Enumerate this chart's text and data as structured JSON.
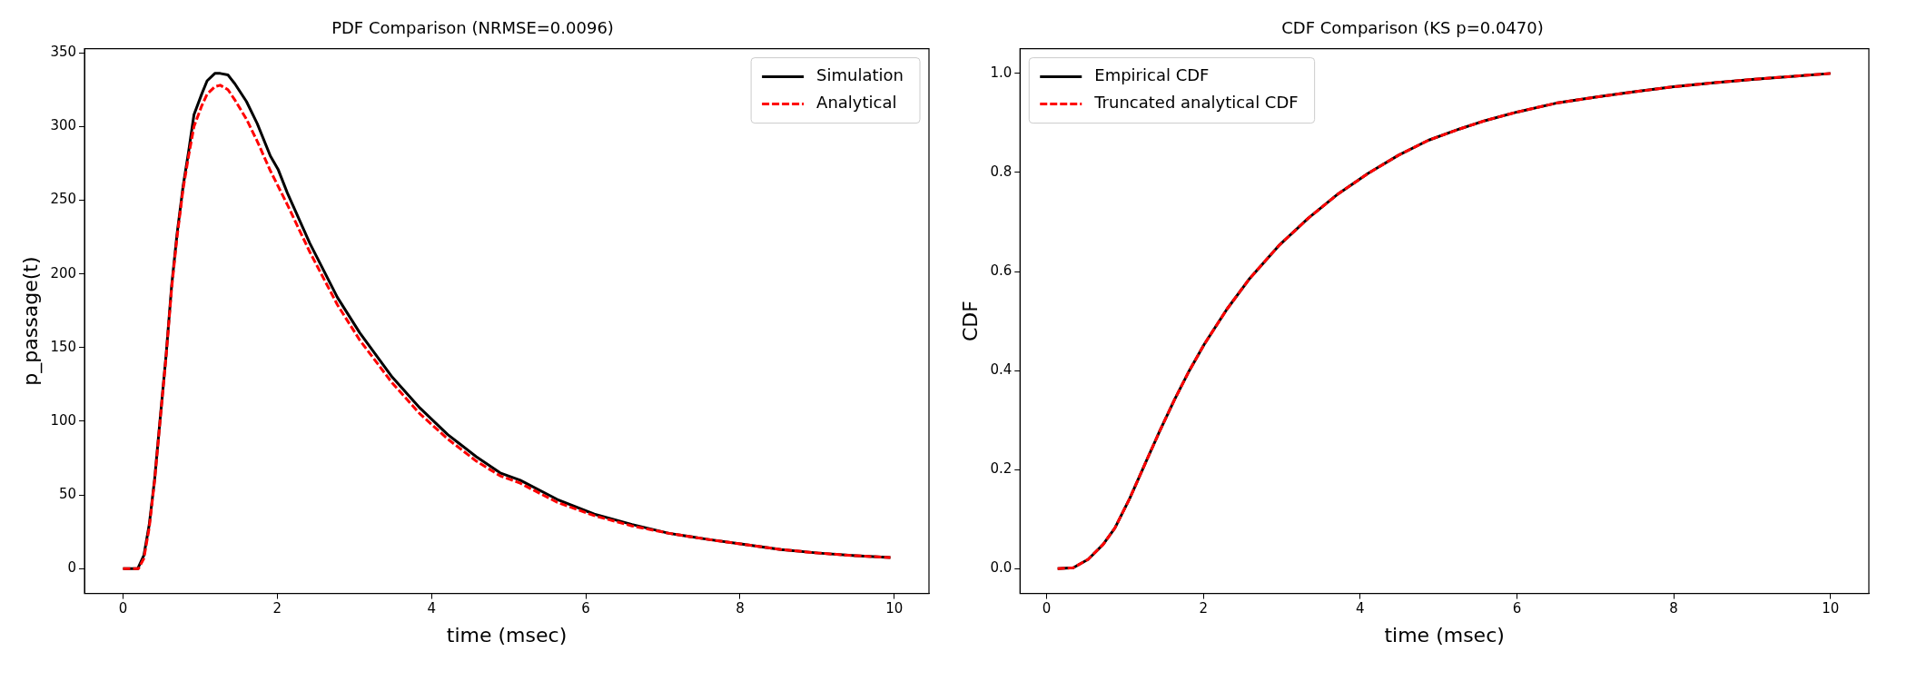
{
  "chart_data": [
    {
      "type": "line",
      "title": "PDF Comparison (NRMSE=0.0096)",
      "xlabel": "time (msec)",
      "ylabel": "p_passage(t)",
      "xlim": [
        -0.5,
        10.45
      ],
      "ylim": [
        -16.8,
        352.8
      ],
      "xticks": [
        0,
        2,
        4,
        6,
        8,
        10
      ],
      "yticks": [
        0,
        50,
        100,
        150,
        200,
        250,
        300,
        350
      ],
      "grid": false,
      "legend": "top right",
      "series": [
        {
          "name": "Simulation",
          "color": "#000000",
          "line_style": "solid",
          "x": [
            0,
            0.19,
            0.27,
            0.34,
            0.41,
            0.48,
            0.56,
            0.63,
            0.7,
            0.78,
            0.85,
            0.92,
            1.02,
            1.09,
            1.19,
            1.26,
            1.36,
            1.45,
            1.6,
            1.74,
            1.91,
            2.01,
            2.13,
            2.42,
            2.78,
            3.07,
            3.49,
            3.85,
            4.21,
            4.58,
            4.89,
            5.15,
            5.63,
            6.11,
            6.6,
            7.08,
            7.57,
            8.05,
            8.53,
            9.02,
            9.5,
            9.95
          ],
          "values": [
            0,
            0,
            9,
            30,
            61,
            101,
            146,
            192,
            227,
            260,
            283,
            308,
            322,
            331,
            336,
            336,
            335,
            329,
            317,
            302,
            280,
            271,
            255,
            221,
            184,
            160,
            130,
            109,
            91,
            76,
            65,
            60,
            47,
            37,
            30,
            24,
            20,
            16.5,
            13,
            10.6,
            8.8,
            7.6
          ]
        },
        {
          "name": "Analytical",
          "color": "#ff0000",
          "line_style": "dashed",
          "x": [
            0,
            0.2,
            0.27,
            0.34,
            0.41,
            0.48,
            0.56,
            0.63,
            0.7,
            0.78,
            0.85,
            0.92,
            1.02,
            1.09,
            1.19,
            1.26,
            1.36,
            1.45,
            1.6,
            1.74,
            1.91,
            2.13,
            2.42,
            2.78,
            3.07,
            3.49,
            3.85,
            4.21,
            4.58,
            4.89,
            5.15,
            5.63,
            6.11,
            6.6,
            7.08,
            7.57,
            8.05,
            8.53,
            9.02,
            9.5,
            9.95
          ],
          "values": [
            0,
            0,
            7,
            28,
            60,
            100,
            145,
            190,
            225,
            258,
            280,
            300,
            314,
            322,
            327,
            328,
            325,
            318,
            305,
            290,
            270,
            247,
            215,
            179,
            155,
            126,
            105,
            88,
            73,
            63,
            58,
            45,
            36,
            29,
            24,
            20,
            16.5,
            13,
            10.6,
            8.8,
            7.6
          ]
        }
      ]
    },
    {
      "type": "line",
      "title": "CDF Comparison (KS p=0.0470)",
      "xlabel": "time (msec)",
      "ylabel": "CDF",
      "xlim": [
        -0.34,
        10.49
      ],
      "ylim": [
        -0.05,
        1.05
      ],
      "xticks": [
        0,
        2,
        4,
        6,
        8,
        10
      ],
      "yticks": [
        {
          "value": 0,
          "label": "0.0"
        },
        {
          "value": 0.2,
          "label": "0.2"
        },
        {
          "value": 0.4,
          "label": "0.4"
        },
        {
          "value": 0.6,
          "label": "0.6"
        },
        {
          "value": 0.8,
          "label": "0.8"
        },
        {
          "value": 1,
          "label": "1.0"
        }
      ],
      "grid": false,
      "legend": "top left",
      "series": [
        {
          "name": "Empirical CDF",
          "color": "#000000",
          "line_style": "solid",
          "x": [
            0.14,
            0.34,
            0.53,
            0.72,
            0.87,
            1.06,
            1.25,
            1.44,
            1.63,
            1.82,
            2.01,
            2.3,
            2.58,
            2.96,
            3.34,
            3.72,
            4.1,
            4.49,
            4.87,
            5.27,
            5.6,
            6,
            6.5,
            7,
            7.5,
            8,
            8.5,
            9,
            9.5,
            10
          ],
          "values": [
            0,
            0.002,
            0.019,
            0.049,
            0.082,
            0.142,
            0.21,
            0.277,
            0.341,
            0.4,
            0.453,
            0.524,
            0.584,
            0.652,
            0.708,
            0.757,
            0.798,
            0.835,
            0.865,
            0.888,
            0.905,
            0.922,
            0.94,
            0.952,
            0.963,
            0.973,
            0.981,
            0.988,
            0.994,
            1
          ]
        },
        {
          "name": "Truncated analytical CDF",
          "color": "#ff0000",
          "line_style": "dashed",
          "x": [
            0.14,
            0.34,
            0.53,
            0.72,
            0.87,
            1.06,
            1.25,
            1.44,
            1.63,
            1.82,
            2.01,
            2.3,
            2.58,
            2.96,
            3.34,
            3.72,
            4.1,
            4.49,
            4.87,
            5.27,
            5.6,
            6,
            6.5,
            7,
            7.5,
            8,
            8.5,
            9,
            9.5,
            10
          ],
          "values": [
            0,
            0.002,
            0.019,
            0.049,
            0.082,
            0.142,
            0.21,
            0.277,
            0.341,
            0.4,
            0.453,
            0.524,
            0.584,
            0.652,
            0.708,
            0.757,
            0.798,
            0.835,
            0.865,
            0.888,
            0.905,
            0.922,
            0.94,
            0.952,
            0.963,
            0.973,
            0.981,
            0.988,
            0.994,
            1
          ]
        }
      ]
    }
  ]
}
